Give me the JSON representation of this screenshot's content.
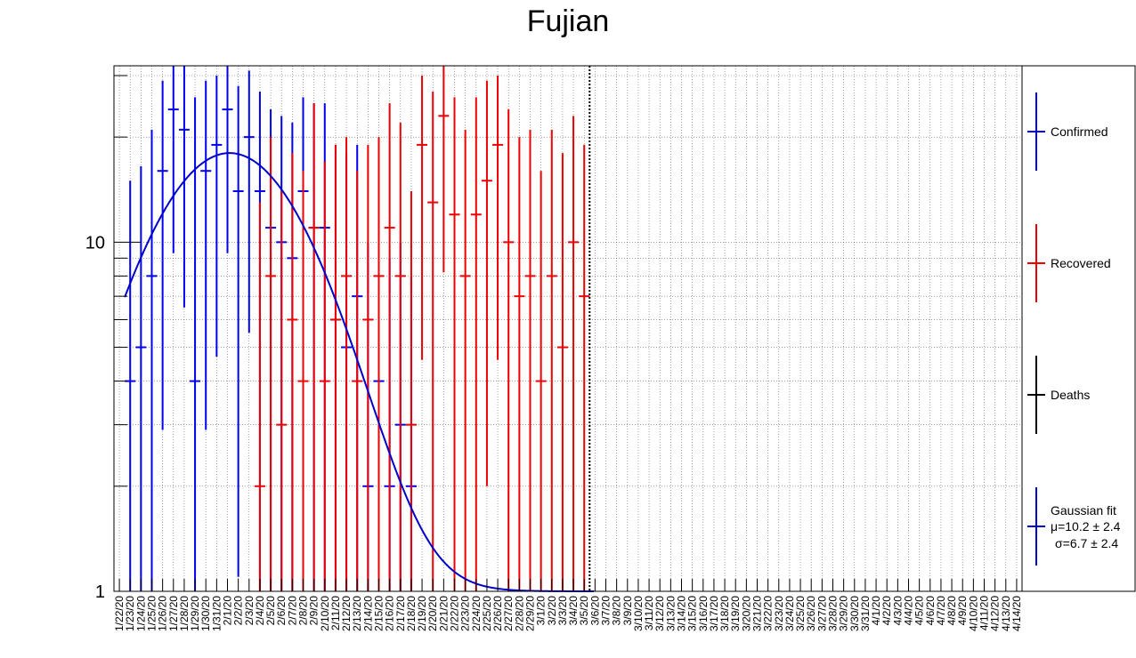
{
  "chart_data": {
    "type": "scatter",
    "title": "Fujian",
    "y_scale": "log",
    "ylim": [
      1,
      32
    ],
    "y_ticks": [
      {
        "value": 1,
        "label": "1"
      },
      {
        "value": 10,
        "label": "10"
      }
    ],
    "grid": true,
    "legend_position": "right",
    "categories": [
      "1/22/20",
      "1/23/20",
      "1/24/20",
      "1/25/20",
      "1/26/20",
      "1/27/20",
      "1/28/20",
      "1/29/20",
      "1/30/20",
      "1/31/20",
      "2/1/20",
      "2/2/20",
      "2/3/20",
      "2/4/20",
      "2/5/20",
      "2/6/20",
      "2/7/20",
      "2/8/20",
      "2/9/20",
      "2/10/20",
      "2/11/20",
      "2/12/20",
      "2/13/20",
      "2/14/20",
      "2/15/20",
      "2/16/20",
      "2/17/20",
      "2/18/20",
      "2/19/20",
      "2/20/20",
      "2/21/20",
      "2/22/20",
      "2/23/20",
      "2/24/20",
      "2/25/20",
      "2/26/20",
      "2/27/20",
      "2/28/20",
      "2/29/20",
      "3/1/20",
      "3/2/20",
      "3/3/20",
      "3/4/20",
      "3/5/20",
      "3/6/20",
      "3/7/20",
      "3/8/20",
      "3/9/20",
      "3/10/20",
      "3/11/20",
      "3/12/20",
      "3/13/20",
      "3/14/20",
      "3/15/20",
      "3/16/20",
      "3/17/20",
      "3/18/20",
      "3/19/20",
      "3/20/20",
      "3/21/20",
      "3/22/20",
      "3/23/20",
      "3/24/20",
      "3/25/20",
      "3/26/20",
      "3/27/20",
      "3/28/20",
      "3/29/20",
      "3/30/20",
      "3/31/20",
      "4/1/20",
      "4/2/20",
      "4/3/20",
      "4/4/20",
      "4/5/20",
      "4/6/20",
      "4/7/20",
      "4/8/20",
      "4/9/20",
      "4/10/20",
      "4/11/20",
      "4/12/20",
      "4/13/20",
      "4/14/20"
    ],
    "marker_date": "3/5/20",
    "series": [
      {
        "name": "Confirmed",
        "color": "#0000ee",
        "points": [
          {
            "date": "1/23/20",
            "value": 4,
            "err_low": 1.0,
            "err_high": 15
          },
          {
            "date": "1/24/20",
            "value": 5,
            "err_low": 1.0,
            "err_high": 16.5
          },
          {
            "date": "1/25/20",
            "value": 8,
            "err_low": 1.0,
            "err_high": 21
          },
          {
            "date": "1/26/20",
            "value": 16,
            "err_low": 2.9,
            "err_high": 29
          },
          {
            "date": "1/27/20",
            "value": 24,
            "err_low": 9.3,
            "err_high": 32
          },
          {
            "date": "1/28/20",
            "value": 21,
            "err_low": 6.5,
            "err_high": 32
          },
          {
            "date": "1/29/20",
            "value": 4,
            "err_low": 1.0,
            "err_high": 26
          },
          {
            "date": "1/30/20",
            "value": 16,
            "err_low": 2.9,
            "err_high": 29
          },
          {
            "date": "1/31/20",
            "value": 19,
            "err_low": 4.7,
            "err_high": 30
          },
          {
            "date": "2/1/20",
            "value": 24,
            "err_low": 9.3,
            "err_high": 32
          },
          {
            "date": "2/2/20",
            "value": 14,
            "err_low": 1.1,
            "err_high": 28
          },
          {
            "date": "2/3/20",
            "value": 20,
            "err_low": 5.5,
            "err_high": 31
          },
          {
            "date": "2/4/20",
            "value": 14,
            "err_low": 1.0,
            "err_high": 27
          },
          {
            "date": "2/5/20",
            "value": 11,
            "err_low": 1.0,
            "err_high": 24
          },
          {
            "date": "2/6/20",
            "value": 10,
            "err_low": 1.0,
            "err_high": 23
          },
          {
            "date": "2/7/20",
            "value": 9,
            "err_low": 1.0,
            "err_high": 22
          },
          {
            "date": "2/8/20",
            "value": 14,
            "err_low": 1.0,
            "err_high": 26
          },
          {
            "date": "2/9/20",
            "value": 11,
            "err_low": 1.0,
            "err_high": 25
          },
          {
            "date": "2/10/20",
            "value": 11,
            "err_low": 1.0,
            "err_high": 25
          },
          {
            "date": "2/11/20",
            "value": 6,
            "err_low": 1.0,
            "err_high": 19
          },
          {
            "date": "2/12/20",
            "value": 5,
            "err_low": 1.0,
            "err_high": 18
          },
          {
            "date": "2/13/20",
            "value": 7,
            "err_low": 1.0,
            "err_high": 19
          },
          {
            "date": "2/14/20",
            "value": 2,
            "err_low": 1.0,
            "err_high": 10
          },
          {
            "date": "2/15/20",
            "value": 4,
            "err_low": 1.0,
            "err_high": 14
          },
          {
            "date": "2/16/20",
            "value": 2,
            "err_low": 1.0,
            "err_high": 9
          },
          {
            "date": "2/17/20",
            "value": 3,
            "err_low": 1.0,
            "err_high": 10
          },
          {
            "date": "2/18/20",
            "value": 2,
            "err_low": 1.0,
            "err_high": 8
          }
        ]
      },
      {
        "name": "Recovered",
        "color": "#ee0000",
        "points": [
          {
            "date": "2/4/20",
            "value": 2,
            "err_low": 1.0,
            "err_high": 13
          },
          {
            "date": "2/5/20",
            "value": 8,
            "err_low": 1.0,
            "err_high": 20
          },
          {
            "date": "2/6/20",
            "value": 3,
            "err_low": 1.0,
            "err_high": 14
          },
          {
            "date": "2/7/20",
            "value": 6,
            "err_low": 1.0,
            "err_high": 18
          },
          {
            "date": "2/8/20",
            "value": 4,
            "err_low": 1.0,
            "err_high": 16
          },
          {
            "date": "2/9/20",
            "value": 11,
            "err_low": 1.0,
            "err_high": 25
          },
          {
            "date": "2/10/20",
            "value": 4,
            "err_low": 1.0,
            "err_high": 17
          },
          {
            "date": "2/11/20",
            "value": 6,
            "err_low": 1.0,
            "err_high": 19
          },
          {
            "date": "2/12/20",
            "value": 8,
            "err_low": 1.0,
            "err_high": 20
          },
          {
            "date": "2/13/20",
            "value": 4,
            "err_low": 1.0,
            "err_high": 16
          },
          {
            "date": "2/14/20",
            "value": 6,
            "err_low": 1.0,
            "err_high": 19
          },
          {
            "date": "2/15/20",
            "value": 8,
            "err_low": 1.0,
            "err_high": 20
          },
          {
            "date": "2/16/20",
            "value": 11,
            "err_low": 1.0,
            "err_high": 25
          },
          {
            "date": "2/17/20",
            "value": 8,
            "err_low": 1.0,
            "err_high": 22
          },
          {
            "date": "2/18/20",
            "value": 3,
            "err_low": 1.0,
            "err_high": 14
          },
          {
            "date": "2/19/20",
            "value": 19,
            "err_low": 4.6,
            "err_high": 30
          },
          {
            "date": "2/20/20",
            "value": 13,
            "err_low": 1.0,
            "err_high": 27
          },
          {
            "date": "2/21/20",
            "value": 23,
            "err_low": 8.2,
            "err_high": 32
          },
          {
            "date": "2/22/20",
            "value": 12,
            "err_low": 1.0,
            "err_high": 26
          },
          {
            "date": "2/23/20",
            "value": 8,
            "err_low": 1.0,
            "err_high": 21
          },
          {
            "date": "2/24/20",
            "value": 12,
            "err_low": 1.0,
            "err_high": 26
          },
          {
            "date": "2/25/20",
            "value": 15,
            "err_low": 2.0,
            "err_high": 29
          },
          {
            "date": "2/26/20",
            "value": 19,
            "err_low": 4.6,
            "err_high": 30
          },
          {
            "date": "2/27/20",
            "value": 10,
            "err_low": 1.0,
            "err_high": 24
          },
          {
            "date": "2/28/20",
            "value": 7,
            "err_low": 1.0,
            "err_high": 20
          },
          {
            "date": "2/29/20",
            "value": 8,
            "err_low": 1.0,
            "err_high": 21
          },
          {
            "date": "3/1/20",
            "value": 4,
            "err_low": 1.0,
            "err_high": 16
          },
          {
            "date": "3/2/20",
            "value": 8,
            "err_low": 1.0,
            "err_high": 21
          },
          {
            "date": "3/3/20",
            "value": 5,
            "err_low": 1.0,
            "err_high": 18
          },
          {
            "date": "3/4/20",
            "value": 10,
            "err_low": 1.0,
            "err_high": 23
          },
          {
            "date": "3/5/20",
            "value": 7,
            "err_low": 1.0,
            "err_high": 19
          }
        ]
      },
      {
        "name": "Deaths",
        "color": "#000000",
        "points": []
      }
    ],
    "fit": {
      "name": "Gaussian fit",
      "color": "#0000cc",
      "amplitude": 17,
      "mean_index": 10.2,
      "sigma_index": 6.7,
      "offset": 1,
      "x_start_index": 0.5,
      "x_end_index": 44,
      "label_mu": "μ=10.2 ± 2.4",
      "label_sigma": "σ=6.7 ± 2.4"
    }
  }
}
